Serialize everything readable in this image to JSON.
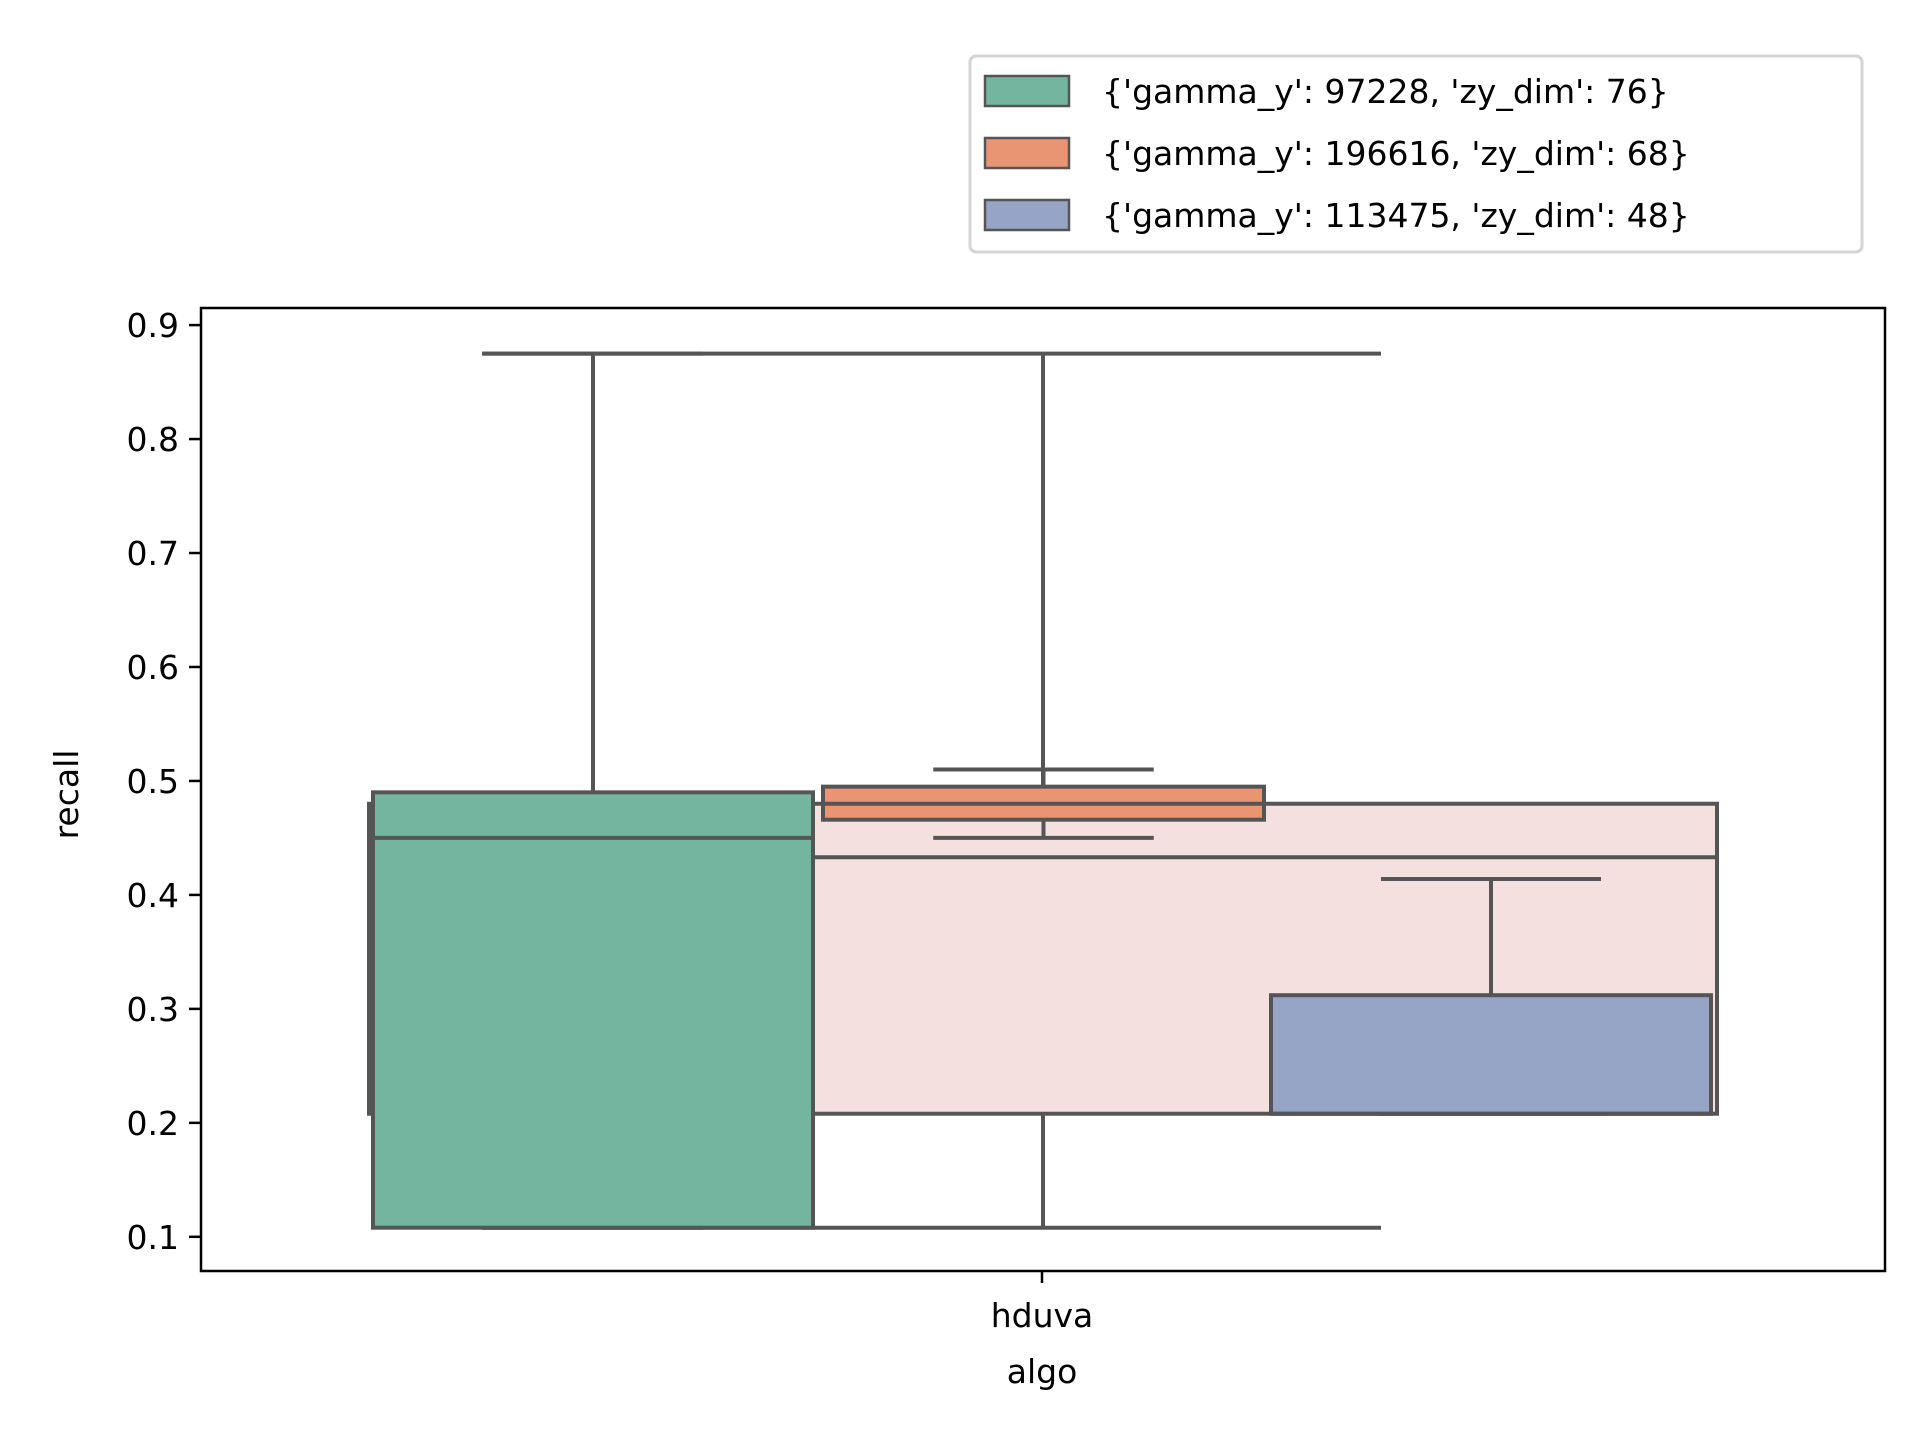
{
  "chart_data": {
    "type": "box",
    "title": "",
    "xlabel": "algo",
    "ylabel": "recall",
    "categories": [
      "hduva"
    ],
    "ylim": [
      0.07,
      0.915
    ],
    "yticks": [
      "0.1",
      "0.2",
      "0.3",
      "0.4",
      "0.5",
      "0.6",
      "0.7",
      "0.8",
      "0.9"
    ],
    "grid": false,
    "legend_position": "top-right, above plot",
    "background_box": {
      "color": "#f5e0e0",
      "q1": 0.208,
      "median": 0.433,
      "q3": 0.48,
      "whisker_low": 0.208,
      "whisker_high": 0.48
    },
    "series": [
      {
        "name": "{'gamma_y': 97228, 'zy_dim': 76}",
        "color": "#74b5a0",
        "whisker_low": 0.108,
        "q1": 0.108,
        "median": 0.45,
        "q3": 0.49,
        "whisker_high": 0.875
      },
      {
        "name": "{'gamma_y': 196616, 'zy_dim': 68}",
        "color": "#e99573",
        "whisker_low": 0.45,
        "q1": 0.466,
        "median": 0.48,
        "q3": 0.495,
        "whisker_high": 0.51
      },
      {
        "name": "{'gamma_y': 113475, 'zy_dim': 48}",
        "color": "#96a4c5",
        "whisker_low": 0.208,
        "q1": 0.208,
        "median": 0.208,
        "q3": 0.312,
        "whisker_high": 0.414
      }
    ],
    "overall": {
      "whisker_low": 0.108,
      "whisker_high": 0.875
    },
    "colors": {
      "edge": "#555555",
      "axes": "#000000"
    }
  }
}
